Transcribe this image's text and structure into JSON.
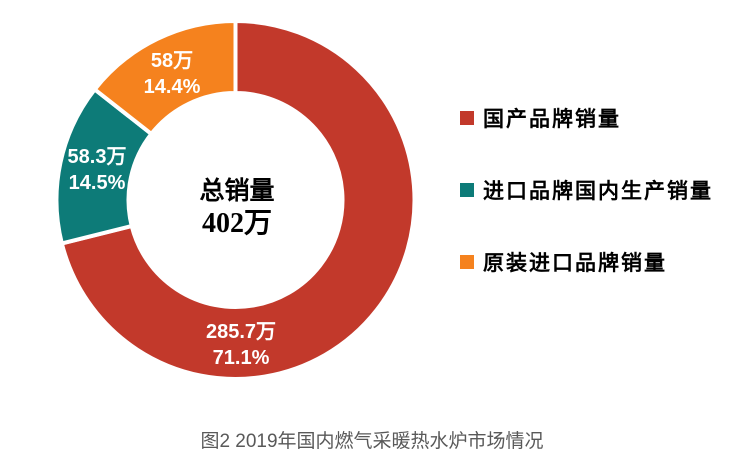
{
  "chart_data": {
    "type": "pie",
    "subtype": "donut",
    "title": "图2 2019年国内燃气采暖热水炉市场情况",
    "unit": "万",
    "total_value": 402,
    "center_label": {
      "title": "总销量",
      "value": "402万"
    },
    "start_angle_deg": 0,
    "direction": "clockwise",
    "legend_position": "right",
    "slice_border_color": "#FFFFFF",
    "series": [
      {
        "name": "国产品牌销量",
        "value": 285.7,
        "pct": 71.1,
        "value_label": "285.7万",
        "pct_label": "71.1%",
        "color": "#C2392B"
      },
      {
        "name": "进口品牌国内生产销量",
        "value": 58.3,
        "pct": 14.5,
        "value_label": "58.3万",
        "pct_label": "14.5%",
        "color": "#0D7B78"
      },
      {
        "name": "原装进口品牌销量",
        "value": 58,
        "pct": 14.4,
        "value_label": "58万",
        "pct_label": "14.4%",
        "color": "#F5821E"
      }
    ]
  }
}
